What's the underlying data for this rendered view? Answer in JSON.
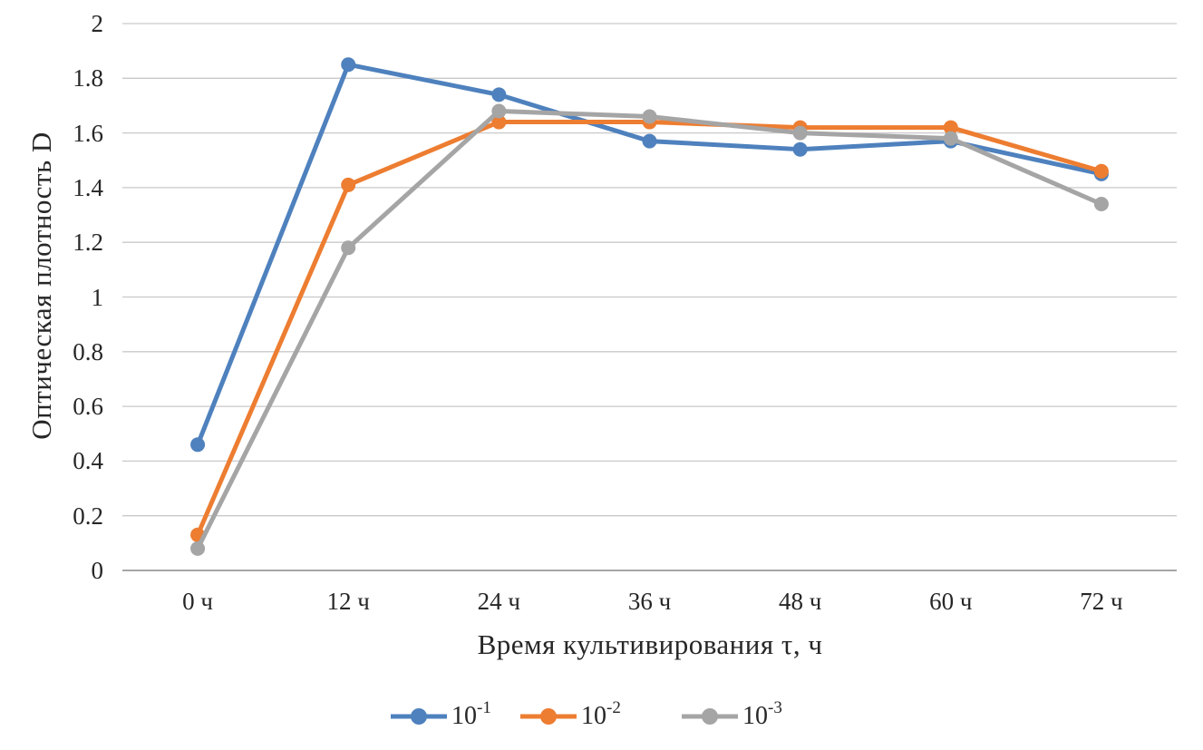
{
  "chart_data": {
    "type": "line",
    "title": "",
    "xlabel": "Время культивирования τ, ч",
    "ylabel": "Оптическая плотность D",
    "categories": [
      "0 ч",
      "12 ч",
      "24 ч",
      "36 ч",
      "48 ч",
      "60 ч",
      "72 ч"
    ],
    "y_ticks": [
      "0",
      "0.2",
      "0.4",
      "0.6",
      "0.8",
      "1",
      "1.2",
      "1.4",
      "1.6",
      "1.8",
      "2"
    ],
    "ylim": [
      0,
      2
    ],
    "grid": true,
    "legend_position": "bottom",
    "colors": {
      "gridline": "#c9c9c9",
      "axis_line": "#a6a6a6",
      "text": "#262626"
    },
    "series": [
      {
        "name": "10⁻¹",
        "label_base": "10",
        "label_exp": "-1",
        "color": "#4E81BD",
        "values": [
          0.46,
          1.85,
          1.74,
          1.57,
          1.54,
          1.57,
          1.45
        ]
      },
      {
        "name": "10⁻²",
        "label_base": "10",
        "label_exp": "-2",
        "color": "#ED7D31",
        "values": [
          0.13,
          1.41,
          1.64,
          1.64,
          1.62,
          1.62,
          1.46
        ]
      },
      {
        "name": "10⁻³",
        "label_base": "10",
        "label_exp": "-3",
        "color": "#A5A5A5",
        "values": [
          0.08,
          1.18,
          1.68,
          1.66,
          1.6,
          1.58,
          1.34
        ]
      }
    ]
  }
}
